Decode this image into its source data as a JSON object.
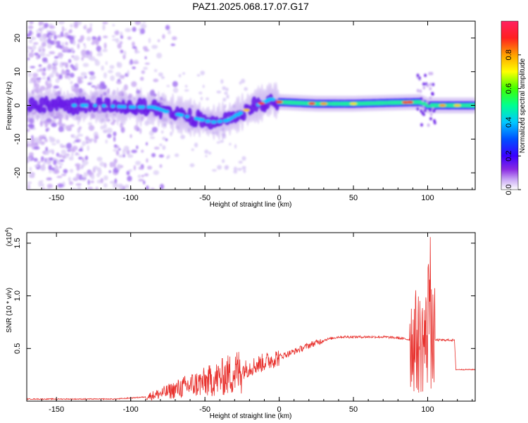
{
  "title": "PAZ1.2025.068.17.07.G17",
  "colors": {
    "snr_line": "#e8322e",
    "colorbar": [
      "#ffffff",
      "#8a2be2",
      "#3a00ff",
      "#0040ff",
      "#00c0ff",
      "#00ff80",
      "#40ff00",
      "#ffff00",
      "#ffa000",
      "#ff2020",
      "#ff2060"
    ]
  },
  "chart_data": [
    {
      "type": "heatmap",
      "xlabel": "Height of straight line (km)",
      "ylabel": "Frequency (Hz)",
      "xlim": [
        -170,
        132
      ],
      "ylim": [
        -25,
        25
      ],
      "x_ticks": [
        "-150",
        "-100",
        "-50",
        "0",
        "50",
        "100"
      ],
      "y_ticks": [
        "-20",
        "-10",
        "0",
        "10",
        "20"
      ],
      "colorbar": {
        "label": "Normalized spectral amplitude",
        "range": [
          0,
          1
        ],
        "ticks": [
          "0.0",
          "0.2",
          "0.4",
          "0.6",
          "0.8"
        ]
      },
      "ridge": [
        {
          "x": -150,
          "y": 0.0
        },
        {
          "x": -125,
          "y": 0.0
        },
        {
          "x": -100,
          "y": -0.5
        },
        {
          "x": -85,
          "y": -0.5
        },
        {
          "x": -75,
          "y": -2.0
        },
        {
          "x": -65,
          "y": -3.0
        },
        {
          "x": -55,
          "y": -4.0
        },
        {
          "x": -45,
          "y": -5.0
        },
        {
          "x": -35,
          "y": -4.5
        },
        {
          "x": -25,
          "y": -2.0
        },
        {
          "x": -15,
          "y": 0.0
        },
        {
          "x": -5,
          "y": 2.0
        },
        {
          "x": 0,
          "y": 1.0
        },
        {
          "x": 25,
          "y": 0.5
        },
        {
          "x": 50,
          "y": 0.5
        },
        {
          "x": 75,
          "y": 0.8
        },
        {
          "x": 95,
          "y": 1.0
        },
        {
          "x": 100,
          "y": 0.0
        },
        {
          "x": 130,
          "y": 0.0
        }
      ]
    },
    {
      "type": "line",
      "xlabel": "Height of straight line (km)",
      "ylabel": "SNR (10 * v/v)",
      "y_multiplier": "(x10",
      "y_multiplier_exp": "4",
      "xlim": [
        -170,
        132
      ],
      "ylim": [
        0,
        1.6
      ],
      "x_ticks": [
        "-150",
        "-100",
        "-50",
        "0",
        "50",
        "100"
      ],
      "y_ticks": [
        "0.5",
        "1.0",
        "1.5"
      ],
      "series": [
        {
          "x": [
            -170,
            -150,
            -130,
            -110,
            -100,
            -90,
            -80,
            -70,
            -60,
            -50,
            -40,
            -30,
            -20,
            -10,
            0,
            10,
            20,
            30,
            40,
            50,
            60,
            70,
            80,
            90,
            95,
            100,
            105,
            110,
            118,
            119,
            132
          ],
          "y": [
            0.02,
            0.02,
            0.02,
            0.02,
            0.03,
            0.04,
            0.07,
            0.11,
            0.15,
            0.18,
            0.22,
            0.27,
            0.32,
            0.37,
            0.42,
            0.47,
            0.53,
            0.58,
            0.61,
            0.61,
            0.61,
            0.61,
            0.6,
            0.58,
            0.55,
            0.6,
            0.58,
            0.58,
            0.58,
            0.3,
            0.3
          ]
        }
      ]
    }
  ]
}
